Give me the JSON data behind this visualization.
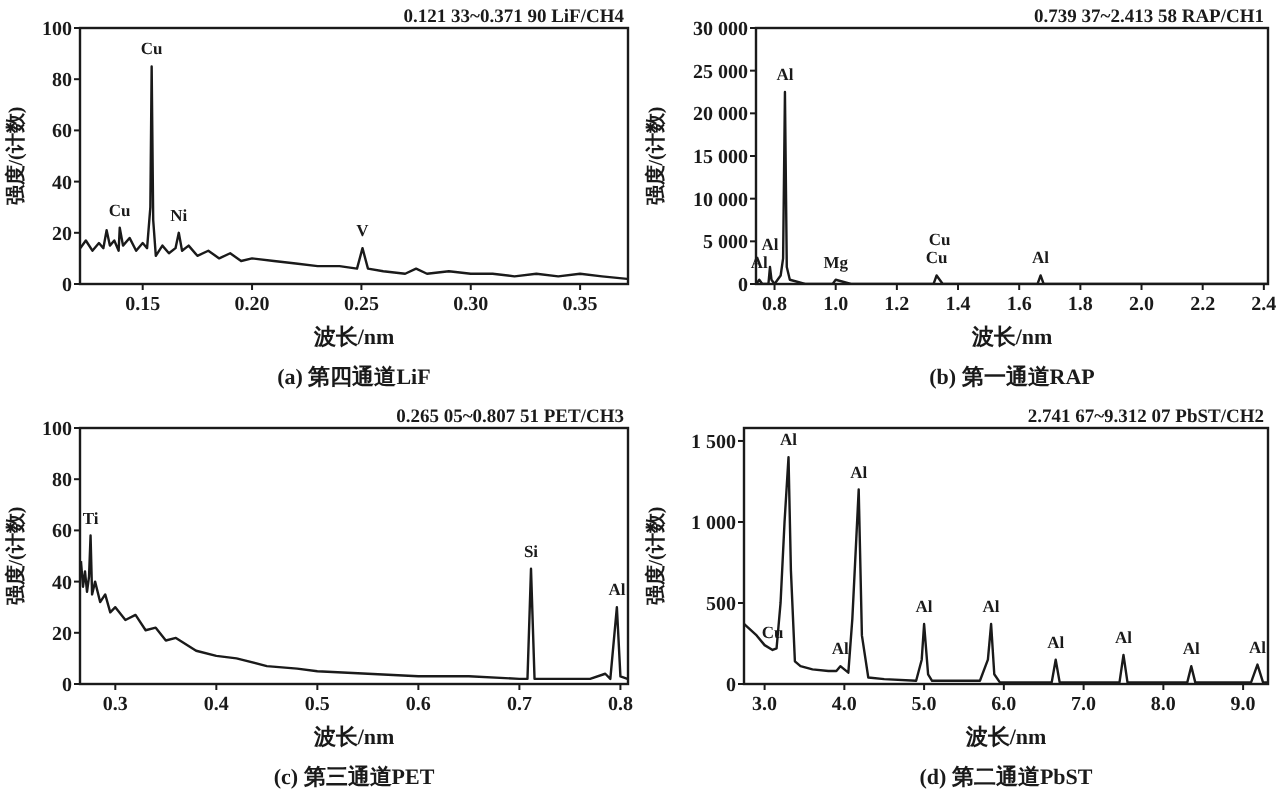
{
  "chart_data": [
    {
      "type": "line",
      "title": "(a) 第四通道LiF",
      "subtitle": "0.121 33~0.371 90  LiF/CH4",
      "xlabel": "波长/nm",
      "ylabel": "强度/(计数)",
      "grid": false,
      "marker": "none",
      "line_style": "solid",
      "xlim": [
        0.12133,
        0.3719
      ],
      "xticks": [
        0.15,
        {
          "value": 0.2,
          "label": "0.20"
        },
        0.25,
        {
          "value": 0.3,
          "label": "0.30"
        },
        0.35
      ],
      "ylim": [
        0,
        100
      ],
      "yticks": [
        0,
        20,
        40,
        60,
        80,
        100
      ],
      "series": [
        {
          "color": "#1a1a1a",
          "x": [
            0.1215,
            0.124,
            0.127,
            0.13,
            0.132,
            0.1335,
            0.135,
            0.137,
            0.139,
            0.1395,
            0.141,
            0.144,
            0.147,
            0.15,
            0.152,
            0.1535,
            0.1541,
            0.1548,
            0.156,
            0.159,
            0.162,
            0.165,
            0.1665,
            0.168,
            0.171,
            0.175,
            0.18,
            0.185,
            0.19,
            0.195,
            0.2,
            0.21,
            0.22,
            0.23,
            0.24,
            0.248,
            0.2505,
            0.253,
            0.26,
            0.27,
            0.275,
            0.28,
            0.29,
            0.3,
            0.31,
            0.32,
            0.33,
            0.34,
            0.35,
            0.36,
            0.3715
          ],
          "values": [
            14,
            17,
            13,
            16,
            14,
            21,
            15,
            17,
            13,
            22,
            15,
            18,
            13,
            16,
            14,
            30,
            85,
            25,
            11,
            15,
            12,
            14,
            20,
            13,
            15,
            11,
            13,
            10,
            12,
            9,
            10,
            9,
            8,
            7,
            7,
            6,
            14,
            6,
            5,
            4,
            6,
            4,
            5,
            4,
            4,
            3,
            4,
            3,
            4,
            3,
            2
          ]
        }
      ],
      "annotations": [
        {
          "text": "Cu",
          "x": 0.1395,
          "y": 22
        },
        {
          "text": "Cu",
          "x": 0.1541,
          "y": 85
        },
        {
          "text": "Ni",
          "x": 0.1665,
          "y": 20
        },
        {
          "text": "V",
          "x": 0.2505,
          "y": 14
        }
      ]
    },
    {
      "type": "line",
      "title": "(b) 第一通道RAP",
      "subtitle": "0.739 37~2.413 58  RAP/CH1",
      "xlabel": "波长/nm",
      "ylabel": "强度/(计数)",
      "grid": false,
      "marker": "none",
      "line_style": "solid",
      "xlim": [
        0.73937,
        2.41358
      ],
      "xticks": [
        0.8,
        {
          "value": 1,
          "label": "1.0"
        },
        1.2,
        1.4,
        1.6,
        1.8,
        {
          "value": 2,
          "label": "2.0"
        },
        2.2,
        2.4
      ],
      "ylim": [
        0,
        30000
      ],
      "yticks": [
        0,
        {
          "value": 5000,
          "label": "5 000"
        },
        {
          "value": 10000,
          "label": "10 000"
        },
        {
          "value": 15000,
          "label": "15 000"
        },
        {
          "value": 20000,
          "label": "20 000"
        },
        {
          "value": 25000,
          "label": "25 000"
        },
        {
          "value": 30000,
          "label": "30 000"
        }
      ],
      "series": [
        {
          "color": "#1a1a1a",
          "x": [
            0.74,
            0.75,
            0.76,
            0.77,
            0.78,
            0.785,
            0.79,
            0.8,
            0.81,
            0.82,
            0.828,
            0.834,
            0.84,
            0.85,
            0.9,
            0.95,
            0.99,
            1.0,
            1.05,
            1.1,
            1.2,
            1.3,
            1.32,
            1.33,
            1.34,
            1.35,
            1.36,
            1.4,
            1.5,
            1.6,
            1.66,
            1.67,
            1.68,
            1.8,
            2.0,
            2.2,
            2.41
          ],
          "values": [
            0,
            500,
            0,
            0,
            0,
            2000,
            500,
            0,
            500,
            1000,
            3000,
            22500,
            2000,
            500,
            0,
            0,
            0,
            500,
            0,
            0,
            0,
            0,
            0,
            1000,
            500,
            0,
            0,
            0,
            0,
            0,
            0,
            1000,
            0,
            0,
            0,
            0,
            0
          ]
        }
      ],
      "annotations": [
        {
          "text": "Al",
          "x": 0.75,
          "y": 500
        },
        {
          "text": "Al",
          "x": 0.785,
          "y": 2000
        },
        {
          "text": "Al",
          "x": 0.834,
          "y": 22500
        },
        {
          "text": "Mg",
          "x": 1.0,
          "y": 500
        },
        {
          "text": "Cu",
          "x": 1.33,
          "y": 1000
        },
        {
          "text": "Cu",
          "x": 1.34,
          "y": 500
        },
        {
          "text": "Al",
          "x": 1.67,
          "y": 1000
        }
      ]
    },
    {
      "type": "line",
      "title": "(c) 第三通道PET",
      "subtitle": "0.265 05~0.807 51  PET/CH3",
      "xlabel": "波长/nm",
      "ylabel": "强度/(计数)",
      "grid": false,
      "marker": "none",
      "line_style": "solid",
      "xlim": [
        0.26505,
        0.80751
      ],
      "xticks": [
        0.3,
        0.4,
        0.5,
        0.6,
        0.7,
        0.8
      ],
      "ylim": [
        0,
        100
      ],
      "yticks": [
        0,
        20,
        40,
        60,
        80,
        100
      ],
      "series": [
        {
          "color": "#1a1a1a",
          "x": [
            0.266,
            0.268,
            0.27,
            0.272,
            0.274,
            0.2755,
            0.277,
            0.28,
            0.285,
            0.29,
            0.295,
            0.3,
            0.31,
            0.32,
            0.33,
            0.34,
            0.35,
            0.36,
            0.38,
            0.4,
            0.42,
            0.45,
            0.48,
            0.5,
            0.55,
            0.6,
            0.65,
            0.7,
            0.708,
            0.7115,
            0.715,
            0.74,
            0.77,
            0.785,
            0.79,
            0.7965,
            0.8,
            0.807
          ],
          "values": [
            48,
            38,
            44,
            36,
            42,
            58,
            35,
            40,
            32,
            35,
            28,
            30,
            25,
            27,
            21,
            22,
            17,
            18,
            13,
            11,
            10,
            7,
            6,
            5,
            4,
            3,
            3,
            2,
            2,
            45,
            2,
            2,
            2,
            4,
            2,
            30,
            3,
            2
          ]
        }
      ],
      "annotations": [
        {
          "text": "Ti",
          "x": 0.2755,
          "y": 58
        },
        {
          "text": "Si",
          "x": 0.7115,
          "y": 45
        },
        {
          "text": "Al",
          "x": 0.7965,
          "y": 30
        }
      ]
    },
    {
      "type": "line",
      "title": "(d) 第二通道PbST",
      "subtitle": "2.741 67~9.312 07  PbST/CH2",
      "xlabel": "波长/nm",
      "ylabel": "强度/(计数)",
      "grid": false,
      "marker": "none",
      "line_style": "solid",
      "xlim": [
        2.74167,
        9.31207
      ],
      "xticks": [
        {
          "value": 3,
          "label": "3.0"
        },
        {
          "value": 4,
          "label": "4.0"
        },
        {
          "value": 5,
          "label": "5.0"
        },
        {
          "value": 6,
          "label": "6.0"
        },
        {
          "value": 7,
          "label": "7.0"
        },
        {
          "value": 8,
          "label": "8.0"
        },
        {
          "value": 9,
          "label": "9.0"
        }
      ],
      "ylim": [
        0,
        1580
      ],
      "yticks": [
        0,
        500,
        {
          "value": 1000,
          "label": "1 000"
        },
        {
          "value": 1500,
          "label": "1 500"
        }
      ],
      "series": [
        {
          "color": "#1a1a1a",
          "x": [
            2.745,
            2.9,
            3.0,
            3.1,
            3.15,
            3.2,
            3.25,
            3.3,
            3.33,
            3.38,
            3.45,
            3.6,
            3.8,
            3.9,
            3.95,
            4.05,
            4.1,
            4.15,
            4.18,
            4.22,
            4.3,
            4.5,
            4.9,
            4.97,
            5.0,
            5.05,
            5.1,
            5.7,
            5.8,
            5.84,
            5.88,
            5.95,
            6.6,
            6.65,
            6.7,
            7.45,
            7.5,
            7.55,
            8.3,
            8.35,
            8.4,
            9.1,
            9.18,
            9.25,
            9.31
          ],
          "values": [
            370,
            300,
            240,
            210,
            220,
            500,
            1000,
            1400,
            700,
            140,
            110,
            90,
            80,
            80,
            110,
            70,
            400,
            900,
            1200,
            300,
            40,
            30,
            20,
            150,
            370,
            60,
            20,
            20,
            150,
            370,
            60,
            10,
            10,
            150,
            10,
            10,
            180,
            10,
            10,
            110,
            10,
            10,
            120,
            10,
            10
          ]
        }
      ],
      "annotations": [
        {
          "text": "Cu",
          "x": 3.1,
          "y": 210
        },
        {
          "text": "Al",
          "x": 3.3,
          "y": 1400
        },
        {
          "text": "Al",
          "x": 3.95,
          "y": 110
        },
        {
          "text": "Al",
          "x": 4.18,
          "y": 1200
        },
        {
          "text": "Al",
          "x": 5.0,
          "y": 370
        },
        {
          "text": "Al",
          "x": 5.84,
          "y": 370
        },
        {
          "text": "Al",
          "x": 6.65,
          "y": 150
        },
        {
          "text": "Al",
          "x": 7.5,
          "y": 180
        },
        {
          "text": "Al",
          "x": 8.35,
          "y": 110
        },
        {
          "text": "Al",
          "x": 9.18,
          "y": 120
        }
      ]
    }
  ]
}
